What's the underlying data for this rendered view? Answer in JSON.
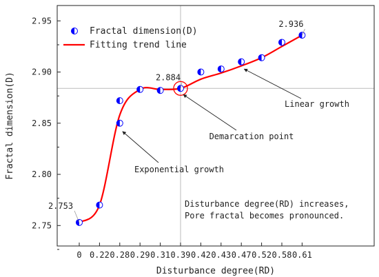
{
  "chart_data": {
    "type": "scatter",
    "title": "",
    "xlabel": "Disturbance degree(RD)",
    "ylabel": "Fractal dimension(D)",
    "ylim": [
      2.73,
      2.965
    ],
    "yticks": [
      "2.75",
      "2.80",
      "2.85",
      "2.90",
      "2.95"
    ],
    "ytick_values": [
      2.75,
      2.8,
      2.85,
      2.9,
      2.95
    ],
    "categories": [
      "0",
      "0.22",
      "0.28",
      "0.29",
      "0.31",
      "0.39",
      "0.42",
      "0.43",
      "0.47",
      "0.52",
      "0.58",
      "0.61"
    ],
    "series": [
      {
        "name": "Fractal dimension(D)",
        "kind": "points",
        "marker": "half-filled-circle",
        "color": "#0000ff",
        "points": [
          {
            "x": "0",
            "y": 2.753
          },
          {
            "x": "0.22",
            "y": 2.77
          },
          {
            "x": "0.28",
            "y": 2.85
          },
          {
            "x": "0.28",
            "y": 2.872
          },
          {
            "x": "0.29",
            "y": 2.883
          },
          {
            "x": "0.31",
            "y": 2.882
          },
          {
            "x": "0.39",
            "y": 2.884
          },
          {
            "x": "0.42",
            "y": 2.9
          },
          {
            "x": "0.43",
            "y": 2.903
          },
          {
            "x": "0.47",
            "y": 2.91
          },
          {
            "x": "0.52",
            "y": 2.914
          },
          {
            "x": "0.58",
            "y": 2.929
          },
          {
            "x": "0.61",
            "y": 2.936
          }
        ]
      },
      {
        "name": "Fitting trend line",
        "kind": "line",
        "color": "#ff0000",
        "points": [
          {
            "x": "0",
            "y": 2.753
          },
          {
            "x": "0.22",
            "y": 2.77
          },
          {
            "x": "0.28",
            "y": 2.858
          },
          {
            "x": "0.29",
            "y": 2.883
          },
          {
            "x": "0.31",
            "y": 2.883
          },
          {
            "x": "0.39",
            "y": 2.884
          },
          {
            "x": "0.42",
            "y": 2.893
          },
          {
            "x": "0.43",
            "y": 2.899
          },
          {
            "x": "0.47",
            "y": 2.906
          },
          {
            "x": "0.52",
            "y": 2.914
          },
          {
            "x": "0.58",
            "y": 2.925
          },
          {
            "x": "0.61",
            "y": 2.936
          }
        ]
      }
    ],
    "legend_position": "top-left",
    "grid": false,
    "reference_lines": {
      "x": "0.39",
      "y": 2.884,
      "color": "#bbbbbb"
    },
    "demarcation_point": {
      "x": "0.39",
      "y": 2.884,
      "color": "#ff0000"
    },
    "value_labels": [
      {
        "text": "2.753",
        "x": "0",
        "y": 2.753
      },
      {
        "text": "2.884",
        "x": "0.39",
        "y": 2.884
      },
      {
        "text": "2.936",
        "x": "0.61",
        "y": 2.936
      }
    ],
    "annotations": [
      {
        "text": "Exponential growth",
        "target": {
          "x": "0.28",
          "y": 2.846
        }
      },
      {
        "text": "Demarcation point",
        "target": {
          "x": "0.39",
          "y": 2.882
        }
      },
      {
        "text": "Linear growth",
        "target": {
          "x": "0.47",
          "y": 2.907
        }
      }
    ],
    "note_lines": [
      "Disturbance degree(RD) increases,",
      "Pore fractal becomes pronounced."
    ]
  }
}
